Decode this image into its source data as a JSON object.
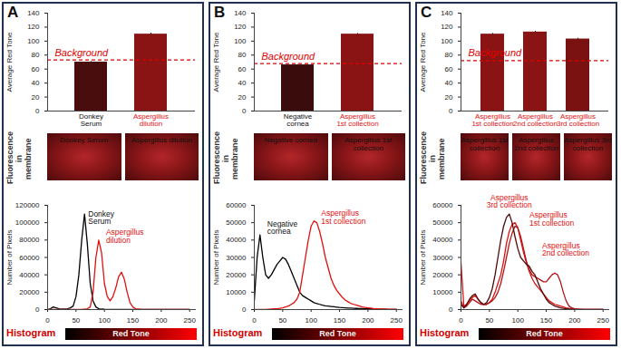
{
  "figure": {
    "panels": [
      "A",
      "B",
      "C"
    ],
    "image_row_label": "Fluorescence in membrane",
    "histogram_label": "Histogram",
    "images": [
      [
        "Donkey Serum",
        "Aspergillus dilution"
      ],
      [
        "Negative cornea",
        "Aspergillus 1st collection"
      ],
      [
        "Aspergillus 1st collection",
        "Aspergillus 2nd collection",
        "Aspergillus 3rd collection"
      ]
    ]
  },
  "chart_data": [
    {
      "type": "bar",
      "ylabel": "Average Red Tone",
      "categories": [
        "Donkey Serum",
        "Aspergillus dilution"
      ],
      "values": [
        70,
        110
      ],
      "errors": [
        0.8,
        1.5
      ],
      "colors": [
        "#4a0d0d",
        "#8a1414"
      ],
      "ylim": [
        0,
        140
      ],
      "yticks": [
        0,
        20,
        40,
        60,
        80,
        100,
        120,
        140
      ],
      "annotations": [
        {
          "text": "Background",
          "y": 73
        }
      ]
    },
    {
      "type": "line",
      "ylabel": "Number of Pixels",
      "xlabel": "Red Tone",
      "x": [
        0,
        5,
        10,
        15,
        20,
        25,
        30,
        35,
        40,
        45,
        50,
        55,
        60,
        65,
        70,
        75,
        80,
        85,
        90,
        95,
        100,
        105,
        110,
        115,
        120,
        125,
        130,
        135,
        140,
        145,
        150,
        155,
        160,
        165,
        170,
        175,
        180,
        185,
        190,
        195,
        200,
        205,
        210,
        215,
        220,
        225,
        230,
        235,
        240,
        245,
        250
      ],
      "series": [
        {
          "name": "Donkey Serum",
          "color": "#000000",
          "values": [
            0,
            1000,
            3000,
            2000,
            1000,
            500,
            500,
            1000,
            2000,
            4000,
            15000,
            40000,
            80000,
            110000,
            75000,
            30000,
            10000,
            3000,
            1000,
            500,
            300,
            200,
            200,
            100,
            100,
            100,
            100,
            0,
            0,
            0,
            0,
            0,
            0,
            0,
            0,
            0,
            0,
            0,
            0,
            0,
            0,
            0,
            0,
            0,
            0,
            0,
            0,
            0,
            0,
            0,
            0
          ]
        },
        {
          "name": "Aspergillus dilution",
          "color": "#e01010",
          "values": [
            0,
            0,
            0,
            0,
            0,
            0,
            0,
            0,
            0,
            0,
            0,
            0,
            200,
            500,
            1000,
            3000,
            20000,
            60000,
            80000,
            65000,
            30000,
            15000,
            10000,
            15000,
            25000,
            38000,
            43000,
            35000,
            20000,
            8000,
            3000,
            1000,
            500,
            200,
            100,
            0,
            0,
            0,
            0,
            0,
            0,
            0,
            0,
            0,
            0,
            0,
            0,
            0,
            0,
            0,
            0
          ]
        }
      ],
      "xlim": [
        0,
        260
      ],
      "xticks": [
        0,
        50,
        100,
        150,
        200,
        250
      ],
      "ylim": [
        0,
        120000
      ],
      "yticks": [
        0,
        20000,
        40000,
        60000,
        80000,
        100000,
        120000
      ]
    },
    {
      "type": "bar",
      "ylabel": "Average Red Tone",
      "categories": [
        "Negative cornea",
        "Aspergillus 1st collection"
      ],
      "values": [
        66,
        110
      ],
      "errors": [
        0.5,
        1
      ],
      "colors": [
        "#3a0c0c",
        "#8a1414"
      ],
      "ylim": [
        0,
        140
      ],
      "yticks": [
        0,
        20,
        40,
        60,
        80,
        100,
        120,
        140
      ],
      "annotations": [
        {
          "text": "Background",
          "y": 68
        }
      ]
    },
    {
      "type": "line",
      "ylabel": "Number of Pixels",
      "xlabel": "Red Tone",
      "x": [
        0,
        5,
        10,
        15,
        20,
        25,
        30,
        35,
        40,
        45,
        50,
        55,
        60,
        65,
        70,
        75,
        80,
        85,
        90,
        95,
        100,
        105,
        110,
        115,
        120,
        125,
        130,
        135,
        140,
        145,
        150,
        155,
        160,
        165,
        170,
        175,
        180,
        185,
        190,
        195,
        200,
        205,
        210,
        215,
        220,
        225,
        230,
        235,
        240,
        245,
        250
      ],
      "series": [
        {
          "name": "Negative cornea",
          "color": "#000000",
          "values": [
            5000,
            30000,
            43000,
            30000,
            20000,
            18000,
            20000,
            23000,
            26000,
            28000,
            30000,
            29000,
            26000,
            22000,
            18000,
            14000,
            10000,
            8000,
            7000,
            6000,
            5000,
            4000,
            3500,
            3000,
            2500,
            2200,
            2000,
            1800,
            1600,
            1400,
            1200,
            1100,
            1000,
            900,
            800,
            700,
            650,
            600,
            550,
            500,
            450,
            400,
            350,
            300,
            250,
            200,
            150,
            100,
            50,
            0,
            0
          ]
        },
        {
          "name": "Aspergillus 1st collection",
          "color": "#e01010",
          "values": [
            0,
            0,
            0,
            0,
            100,
            200,
            300,
            400,
            500,
            700,
            1000,
            1500,
            2000,
            3000,
            4000,
            6000,
            10000,
            20000,
            30000,
            40000,
            48000,
            51000,
            50000,
            45000,
            38000,
            30000,
            24000,
            18000,
            14000,
            11000,
            9000,
            7000,
            5500,
            4500,
            3500,
            3000,
            2500,
            2000,
            1500,
            1200,
            1000,
            800,
            600,
            500,
            400,
            300,
            250,
            200,
            200,
            200,
            200
          ]
        }
      ],
      "xlim": [
        0,
        260
      ],
      "xticks": [
        0,
        50,
        100,
        150,
        200,
        250
      ],
      "ylim": [
        0,
        60000
      ],
      "yticks": [
        0,
        10000,
        20000,
        30000,
        40000,
        50000,
        60000
      ]
    },
    {
      "type": "bar",
      "ylabel": "Average Red Tone",
      "categories": [
        "Aspergillus 1st collection",
        "Aspergillus 2nd collection",
        "Aspergillus 3rd collection"
      ],
      "values": [
        110,
        113,
        103
      ],
      "errors": [
        1,
        1,
        1
      ],
      "colors": [
        "#8a1414",
        "#8a1414",
        "#7a1212"
      ],
      "ylim": [
        0,
        140
      ],
      "yticks": [
        0,
        20,
        40,
        60,
        80,
        100,
        120,
        140
      ],
      "annotations": [
        {
          "text": "Background",
          "y": 72
        }
      ]
    },
    {
      "type": "line",
      "ylabel": "Number of Pixels",
      "xlabel": "Red Tone",
      "x": [
        0,
        5,
        10,
        15,
        20,
        25,
        30,
        35,
        40,
        45,
        50,
        55,
        60,
        65,
        70,
        75,
        80,
        85,
        90,
        95,
        100,
        105,
        110,
        115,
        120,
        125,
        130,
        135,
        140,
        145,
        150,
        155,
        160,
        165,
        170,
        175,
        180,
        185,
        190,
        195,
        200,
        205,
        210,
        215,
        220,
        225,
        230,
        235,
        240,
        245,
        250
      ],
      "series": [
        {
          "name": "Aspergillus 1st collection",
          "color": "#e01010",
          "values": [
            27000,
            2000,
            3000,
            5000,
            7000,
            8000,
            6000,
            4000,
            3000,
            3000,
            4000,
            6000,
            10000,
            15000,
            20000,
            28000,
            38000,
            45000,
            49000,
            50000,
            47000,
            40000,
            33000,
            27000,
            22000,
            18000,
            15000,
            13000,
            11000,
            9000,
            7000,
            5000,
            4000,
            3000,
            2500,
            2000,
            1500,
            1000,
            700,
            500,
            300,
            200,
            100,
            100,
            0,
            0,
            0,
            0,
            0,
            0,
            0
          ]
        },
        {
          "name": "Aspergillus 2nd collection",
          "color": "#b3161a",
          "values": [
            5000,
            1000,
            2000,
            4000,
            6000,
            5000,
            4000,
            3000,
            3000,
            3000,
            4000,
            5000,
            7000,
            10000,
            15000,
            22000,
            30000,
            38000,
            44000,
            48000,
            47000,
            42000,
            35000,
            28000,
            23000,
            20000,
            19000,
            18000,
            17000,
            16000,
            16000,
            18000,
            20000,
            21000,
            20000,
            16000,
            10000,
            5000,
            2000,
            1000,
            500,
            300,
            200,
            100,
            0,
            0,
            0,
            0,
            0,
            0,
            0
          ]
        },
        {
          "name": "Aspergillus 3rd collection",
          "color": "#4d0a0a",
          "values": [
            3000,
            1000,
            3000,
            6000,
            8000,
            9000,
            6000,
            4000,
            3000,
            4000,
            7000,
            12000,
            20000,
            30000,
            40000,
            48000,
            53000,
            55000,
            50000,
            42000,
            35000,
            30000,
            28000,
            26000,
            25000,
            22000,
            20000,
            16000,
            12000,
            9000,
            6000,
            4000,
            3000,
            2000,
            1500,
            1000,
            700,
            500,
            300,
            200,
            100,
            0,
            0,
            0,
            0,
            0,
            0,
            0,
            0,
            0,
            0
          ]
        }
      ],
      "xlim": [
        0,
        260
      ],
      "xticks": [
        0,
        50,
        100,
        150,
        200,
        250
      ],
      "ylim": [
        0,
        60000
      ],
      "yticks": [
        0,
        10000,
        20000,
        30000,
        40000,
        50000,
        60000
      ]
    }
  ]
}
